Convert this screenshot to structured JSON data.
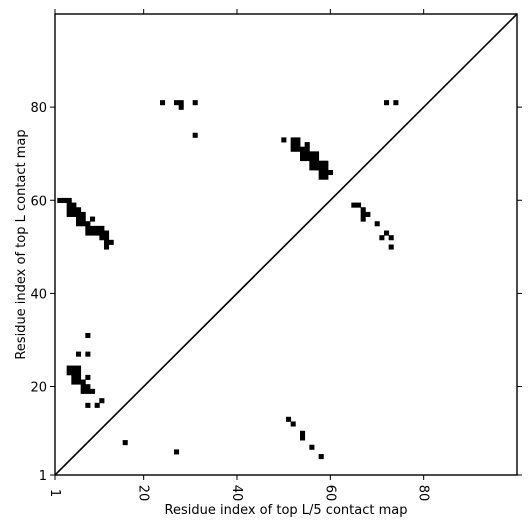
{
  "chart_data": {
    "type": "scatter",
    "title": "",
    "xlabel": "Residue index of top L/5 contact map",
    "ylabel": "Residue index of top L contact map",
    "xlim": [
      1,
      100
    ],
    "ylim": [
      1,
      100
    ],
    "xticks": [
      1,
      20,
      40,
      60,
      80
    ],
    "yticks": [
      1,
      20,
      40,
      60,
      80
    ],
    "grid": false,
    "diagonal": true,
    "series": [
      {
        "marker": "square",
        "color": "#000000",
        "points": [
          [
            2,
            60
          ],
          [
            3,
            60
          ],
          [
            4,
            60
          ],
          [
            4,
            59
          ],
          [
            5,
            59
          ],
          [
            4,
            58
          ],
          [
            5,
            58
          ],
          [
            6,
            58
          ],
          [
            4,
            57
          ],
          [
            5,
            57
          ],
          [
            6,
            57
          ],
          [
            7,
            57
          ],
          [
            6,
            56
          ],
          [
            7,
            56
          ],
          [
            6,
            55
          ],
          [
            7,
            55
          ],
          [
            8,
            55
          ],
          [
            9,
            56
          ],
          [
            8,
            54
          ],
          [
            9,
            54
          ],
          [
            10,
            54
          ],
          [
            11,
            54
          ],
          [
            8,
            53
          ],
          [
            9,
            53
          ],
          [
            10,
            53
          ],
          [
            11,
            53
          ],
          [
            12,
            53
          ],
          [
            11,
            52
          ],
          [
            12,
            52
          ],
          [
            12,
            51
          ],
          [
            13,
            51
          ],
          [
            12,
            50
          ],
          [
            24,
            81
          ],
          [
            27,
            81
          ],
          [
            28,
            81
          ],
          [
            28,
            80
          ],
          [
            31,
            81
          ],
          [
            31,
            74
          ],
          [
            50,
            73
          ],
          [
            52,
            73
          ],
          [
            53,
            73
          ],
          [
            52,
            72
          ],
          [
            53,
            72
          ],
          [
            55,
            72
          ],
          [
            52,
            71
          ],
          [
            53,
            71
          ],
          [
            54,
            71
          ],
          [
            55,
            71
          ],
          [
            54,
            70
          ],
          [
            55,
            70
          ],
          [
            56,
            70
          ],
          [
            57,
            70
          ],
          [
            54,
            69
          ],
          [
            55,
            69
          ],
          [
            56,
            69
          ],
          [
            57,
            69
          ],
          [
            56,
            68
          ],
          [
            57,
            68
          ],
          [
            58,
            68
          ],
          [
            59,
            68
          ],
          [
            56,
            67
          ],
          [
            57,
            67
          ],
          [
            58,
            67
          ],
          [
            59,
            67
          ],
          [
            58,
            66
          ],
          [
            59,
            66
          ],
          [
            60,
            66
          ],
          [
            58,
            65
          ],
          [
            59,
            65
          ],
          [
            65,
            59
          ],
          [
            66,
            59
          ],
          [
            67,
            58
          ],
          [
            67,
            57
          ],
          [
            68,
            57
          ],
          [
            67,
            56
          ],
          [
            70,
            55
          ],
          [
            72,
            53
          ],
          [
            71,
            52
          ],
          [
            73,
            52
          ],
          [
            73,
            50
          ],
          [
            72,
            81
          ],
          [
            74,
            81
          ],
          [
            8,
            31
          ],
          [
            6,
            27
          ],
          [
            8,
            27
          ],
          [
            4,
            24
          ],
          [
            5,
            24
          ],
          [
            6,
            24
          ],
          [
            4,
            23
          ],
          [
            5,
            23
          ],
          [
            6,
            23
          ],
          [
            5,
            22
          ],
          [
            6,
            22
          ],
          [
            5,
            21
          ],
          [
            6,
            21
          ],
          [
            7,
            21
          ],
          [
            8,
            22
          ],
          [
            7,
            20
          ],
          [
            8,
            20
          ],
          [
            7,
            19
          ],
          [
            8,
            19
          ],
          [
            9,
            19
          ],
          [
            8,
            16
          ],
          [
            10,
            16
          ],
          [
            11,
            17
          ],
          [
            16,
            8
          ],
          [
            27,
            6
          ],
          [
            51,
            13
          ],
          [
            52,
            12
          ],
          [
            54,
            10
          ],
          [
            54,
            9
          ],
          [
            56,
            7
          ],
          [
            58,
            5
          ]
        ]
      }
    ]
  }
}
